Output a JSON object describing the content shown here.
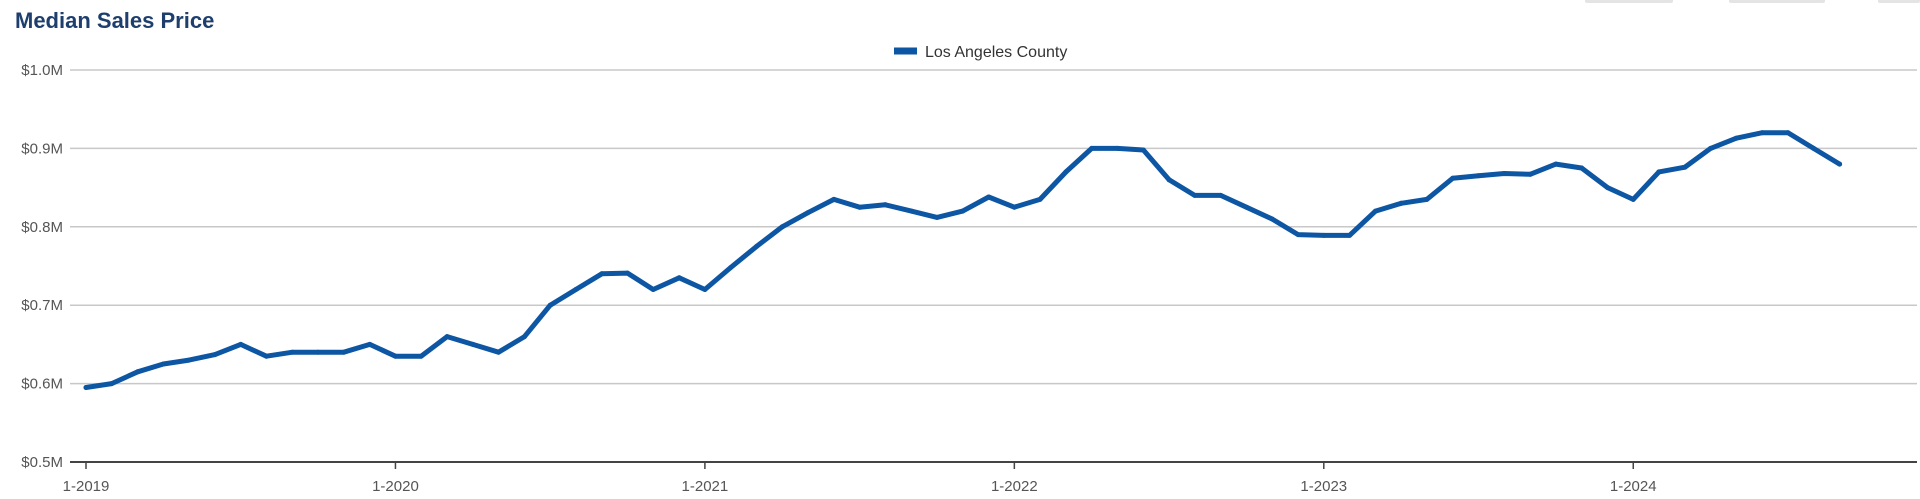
{
  "chart_data": {
    "type": "line",
    "title": "Median Sales Price",
    "legend": {
      "position": "top-center",
      "entries": [
        "Los Angeles County"
      ]
    },
    "x_ticks": [
      "1-2019",
      "1-2020",
      "1-2021",
      "1-2022",
      "1-2023",
      "1-2024"
    ],
    "y_ticks": [
      "$0.5M",
      "$0.6M",
      "$0.7M",
      "$0.8M",
      "$0.9M",
      "$1.0M"
    ],
    "y_tick_values": [
      0.5,
      0.6,
      0.7,
      0.8,
      0.9,
      1.0
    ],
    "ylim": [
      0.5,
      1.0
    ],
    "xlim": [
      2019.0,
      2024.917
    ],
    "grid": true,
    "colors": {
      "series": "#0d56a3",
      "grid": "#c8c8c8",
      "axis": "#444444",
      "title": "#1e3f6e"
    },
    "series": [
      {
        "name": "Los Angeles County",
        "x": [
          2019.0,
          2019.083,
          2019.167,
          2019.25,
          2019.333,
          2019.417,
          2019.5,
          2019.583,
          2019.667,
          2019.75,
          2019.833,
          2019.917,
          2020.0,
          2020.083,
          2020.167,
          2020.25,
          2020.333,
          2020.417,
          2020.5,
          2020.583,
          2020.667,
          2020.75,
          2020.833,
          2020.917,
          2021.0,
          2021.083,
          2021.167,
          2021.25,
          2021.333,
          2021.417,
          2021.5,
          2021.583,
          2021.667,
          2021.75,
          2021.833,
          2021.917,
          2022.0,
          2022.083,
          2022.167,
          2022.25,
          2022.333,
          2022.417,
          2022.5,
          2022.583,
          2022.667,
          2022.75,
          2022.833,
          2022.917,
          2023.0,
          2023.083,
          2023.167,
          2023.25,
          2023.333,
          2023.417,
          2023.5,
          2023.583,
          2023.667,
          2023.75,
          2023.833,
          2023.917,
          2024.0,
          2024.083,
          2024.167,
          2024.25,
          2024.333,
          2024.417,
          2024.5,
          2024.583,
          2024.667
        ],
        "values": [
          0.595,
          0.6,
          0.615,
          0.625,
          0.63,
          0.637,
          0.65,
          0.635,
          0.64,
          0.64,
          0.64,
          0.65,
          0.635,
          0.635,
          0.66,
          0.65,
          0.64,
          0.66,
          0.7,
          0.72,
          0.74,
          0.741,
          0.72,
          0.735,
          0.72,
          0.748,
          0.775,
          0.8,
          0.818,
          0.835,
          0.825,
          0.828,
          0.82,
          0.812,
          0.82,
          0.838,
          0.825,
          0.835,
          0.87,
          0.9,
          0.9,
          0.898,
          0.86,
          0.84,
          0.84,
          0.825,
          0.81,
          0.79,
          0.789,
          0.789,
          0.82,
          0.83,
          0.835,
          0.862,
          0.865,
          0.868,
          0.867,
          0.88,
          0.875,
          0.85,
          0.835,
          0.87,
          0.876,
          0.9,
          0.913,
          0.92,
          0.92,
          0.9,
          0.88
        ]
      }
    ]
  }
}
